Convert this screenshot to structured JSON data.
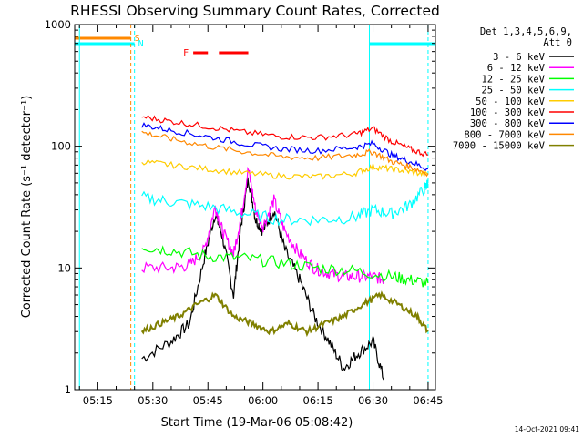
{
  "chart_data": {
    "type": "line",
    "title": "RHESSI Observing Summary Count Rates, Corrected",
    "xlabel": "Start Time (19-Mar-06 05:08:42)",
    "ylabel": "Corrected Count Rate (s⁻¹ detector⁻¹)",
    "yscale": "log",
    "ylim": [
      1,
      1000
    ],
    "xlim": [
      "05:08:42",
      "06:47:00"
    ],
    "x_ticks": [
      "05:15",
      "05:30",
      "05:45",
      "06:00",
      "06:15",
      "06:30",
      "06:45"
    ],
    "y_ticks": [
      "1",
      "10",
      "100",
      "1000"
    ],
    "legend": {
      "position": "top-right",
      "header": [
        "Det 1,3,4,5,6,9,",
        "Att 0"
      ]
    },
    "series": [
      {
        "name": "3 - 6 keV",
        "color": "#000000",
        "x": [
          "05:27",
          "05:35",
          "05:40",
          "05:44",
          "05:47",
          "05:49",
          "05:52",
          "05:54",
          "05:56",
          "05:58",
          "06:00",
          "06:03",
          "06:06",
          "06:10",
          "06:14",
          "06:18",
          "06:22",
          "06:26",
          "06:30",
          "06:33"
        ],
        "values": [
          1.8,
          2.5,
          3.5,
          12,
          28,
          18,
          6,
          22,
          55,
          25,
          20,
          30,
          14,
          8,
          4,
          2.5,
          1.5,
          2.0,
          2.5,
          1.2
        ]
      },
      {
        "name": "6 - 12 keV",
        "color": "#ff00ff",
        "x": [
          "05:27",
          "05:35",
          "05:40",
          "05:44",
          "05:47",
          "05:49",
          "05:52",
          "05:54",
          "05:56",
          "05:58",
          "06:00",
          "06:03",
          "06:06",
          "06:10",
          "06:14",
          "06:18",
          "06:22",
          "06:26",
          "06:30",
          "06:33"
        ],
        "values": [
          10,
          10,
          10.5,
          14,
          32,
          20,
          13,
          26,
          65,
          30,
          22,
          36,
          20,
          13,
          10,
          9,
          8.5,
          8.5,
          8.5,
          8
        ]
      },
      {
        "name": "12 - 25 keV",
        "color": "#00ff00",
        "x": [
          "05:27",
          "05:35",
          "05:45",
          "05:55",
          "06:05",
          "06:15",
          "06:25",
          "06:35",
          "06:40",
          "06:45"
        ],
        "values": [
          15,
          14,
          12.5,
          12,
          11,
          10,
          9.5,
          8.5,
          8,
          7.5
        ]
      },
      {
        "name": "25 - 50 keV",
        "color": "#00ffff",
        "x": [
          "05:27",
          "05:35",
          "05:45",
          "05:55",
          "06:05",
          "06:15",
          "06:25",
          "06:30",
          "06:35",
          "06:40",
          "06:44",
          "06:45"
        ],
        "values": [
          38,
          35,
          32,
          28,
          25,
          25,
          26,
          30,
          28,
          33,
          45,
          50
        ]
      },
      {
        "name": "50 - 100 keV",
        "color": "#ffcc00",
        "x": [
          "05:27",
          "05:35",
          "05:45",
          "05:55",
          "06:05",
          "06:15",
          "06:25",
          "06:30",
          "06:35",
          "06:40",
          "06:45"
        ],
        "values": [
          75,
          70,
          65,
          60,
          57,
          56,
          60,
          68,
          65,
          62,
          58
        ]
      },
      {
        "name": "100 - 300 keV",
        "color": "#ff0000",
        "x": [
          "05:27",
          "05:35",
          "05:45",
          "05:55",
          "06:05",
          "06:15",
          "06:25",
          "06:30",
          "06:35",
          "06:40",
          "06:45"
        ],
        "values": [
          175,
          160,
          145,
          130,
          120,
          118,
          125,
          140,
          110,
          95,
          85
        ]
      },
      {
        "name": "300 - 800 keV",
        "color": "#0000ff",
        "x": [
          "05:27",
          "05:35",
          "05:45",
          "05:55",
          "06:05",
          "06:15",
          "06:25",
          "06:30",
          "06:35",
          "06:40",
          "06:45"
        ],
        "values": [
          150,
          135,
          120,
          105,
          95,
          92,
          98,
          105,
          85,
          75,
          65
        ]
      },
      {
        "name": "800 - 7000 keV",
        "color": "#ff8800",
        "x": [
          "05:27",
          "05:35",
          "05:45",
          "05:55",
          "06:05",
          "06:15",
          "06:25",
          "06:30",
          "06:35",
          "06:40",
          "06:45"
        ],
        "values": [
          130,
          115,
          100,
          90,
          82,
          80,
          85,
          90,
          75,
          68,
          60
        ]
      },
      {
        "name": "7000 - 15000 keV",
        "color": "#808000",
        "x": [
          "05:27",
          "05:32",
          "05:37",
          "05:42",
          "05:47",
          "05:52",
          "05:57",
          "06:02",
          "06:07",
          "06:12",
          "06:17",
          "06:22",
          "06:27",
          "06:32",
          "06:37",
          "06:42",
          "06:45"
        ],
        "values": [
          3,
          3.5,
          4,
          5,
          6,
          4,
          3.5,
          3,
          3.5,
          3,
          3.5,
          4,
          5,
          6,
          5,
          4,
          3
        ]
      }
    ],
    "flags": [
      {
        "label": "S",
        "color": "#ff8800",
        "segments": [
          [
            "05:08:42",
            "05:24"
          ]
        ],
        "marker_at": "05:24"
      },
      {
        "label": "N",
        "color": "#00ffff",
        "segments": [
          [
            "05:08:42",
            "05:25"
          ],
          [
            "06:29",
            "06:47"
          ]
        ],
        "marker_at": "05:25"
      },
      {
        "label": "F",
        "color": "#ff0000",
        "segments": [
          [
            "05:41",
            "05:45"
          ],
          [
            "05:48",
            "05:56"
          ]
        ]
      }
    ],
    "vertical_lines": [
      {
        "x": "05:10",
        "color": "#00ffff",
        "style": "solid"
      },
      {
        "x": "05:24",
        "color": "#ff8800",
        "style": "dashed"
      },
      {
        "x": "05:25",
        "color": "#00ffff",
        "style": "dashed"
      },
      {
        "x": "06:29",
        "color": "#00ffff",
        "style": "solid"
      },
      {
        "x": "06:45",
        "color": "#00ffff",
        "style": "dashed"
      }
    ]
  },
  "footer": {
    "timestamp": "14-Oct-2021 09:41"
  }
}
